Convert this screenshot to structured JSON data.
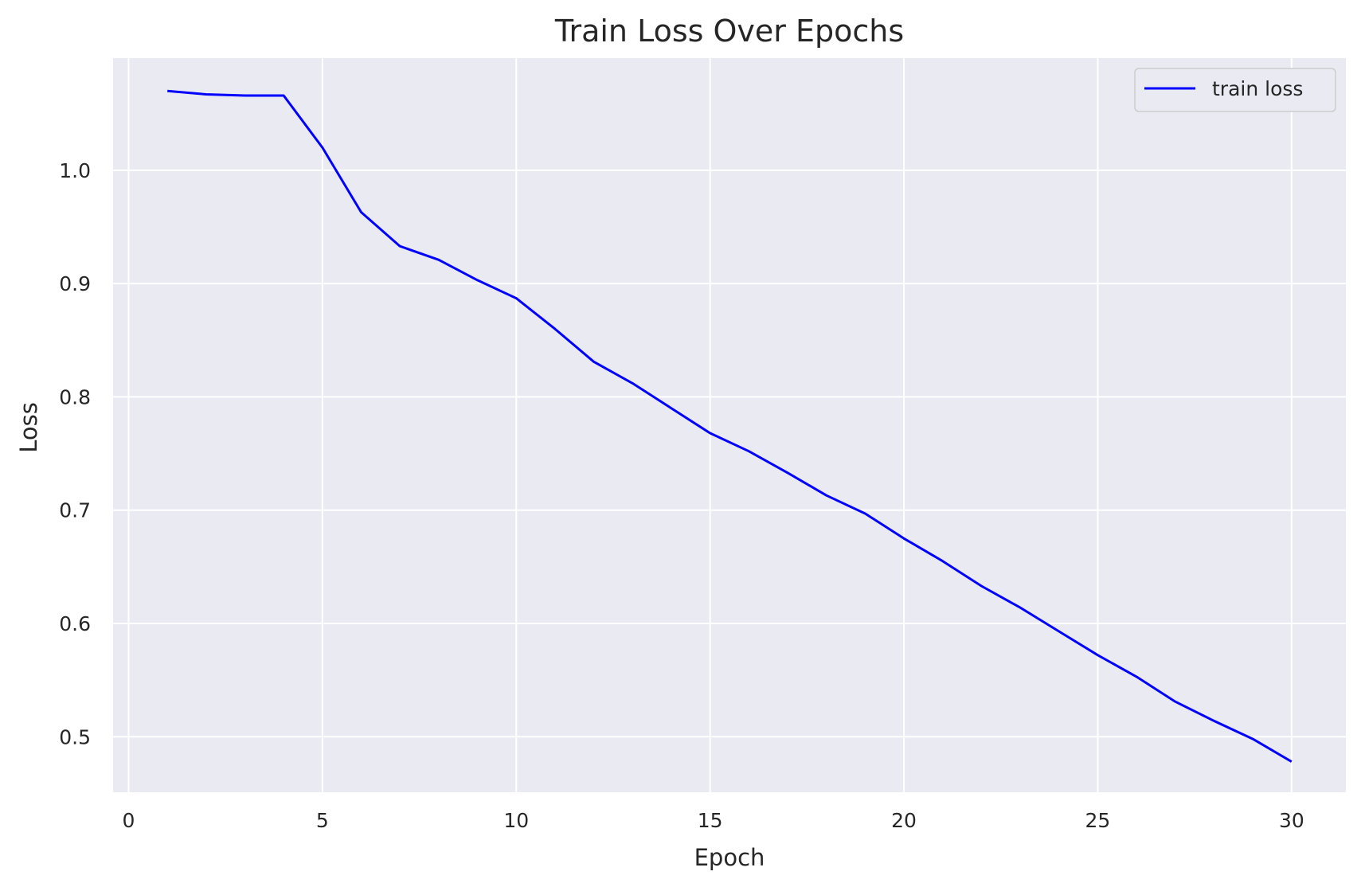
{
  "chart_data": {
    "type": "line",
    "title": "Train Loss Over Epochs",
    "xlabel": "Epoch",
    "ylabel": "Loss",
    "xlim": [
      -0.4,
      31.4
    ],
    "ylim": [
      0.451,
      1.099
    ],
    "x_ticks": [
      0,
      5,
      10,
      15,
      20,
      25,
      30
    ],
    "y_ticks": [
      0.5,
      0.6,
      0.7,
      0.8,
      0.9,
      1.0
    ],
    "x_tick_labels": [
      "0",
      "5",
      "10",
      "15",
      "20",
      "25",
      "30"
    ],
    "y_tick_labels": [
      "0.5",
      "0.6",
      "0.7",
      "0.8",
      "0.9",
      "1.0"
    ],
    "grid": true,
    "legend_position": "top-right",
    "series": [
      {
        "name": "train loss",
        "color": "#0000ff",
        "x": [
          1,
          2,
          3,
          4,
          5,
          6,
          7,
          8,
          9,
          10,
          11,
          12,
          13,
          14,
          15,
          16,
          17,
          18,
          19,
          20,
          21,
          22,
          23,
          24,
          25,
          26,
          27,
          28,
          29,
          30
        ],
        "values": [
          1.07,
          1.067,
          1.066,
          1.066,
          1.02,
          0.963,
          0.933,
          0.921,
          0.903,
          0.887,
          0.86,
          0.831,
          0.812,
          0.79,
          0.768,
          0.752,
          0.733,
          0.713,
          0.697,
          0.675,
          0.655,
          0.633,
          0.614,
          0.593,
          0.572,
          0.553,
          0.531,
          0.514,
          0.498,
          0.478
        ]
      }
    ]
  },
  "colors": {
    "plot_background": "#eaeaf2",
    "grid": "#ffffff",
    "text": "#262626"
  }
}
